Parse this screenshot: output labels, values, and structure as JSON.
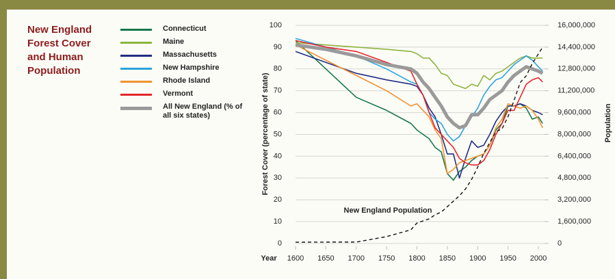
{
  "chart_data": {
    "type": "line",
    "title": "New England Forest Cover and Human Population",
    "x_label": "Year",
    "y_label": "Forest Cover (percentage of state)",
    "y2_label": "Population",
    "x": [
      1600,
      1650,
      1700,
      1750,
      1790,
      1800,
      1810,
      1820,
      1830,
      1840,
      1850,
      1860,
      1870,
      1880,
      1890,
      1900,
      1910,
      1920,
      1930,
      1940,
      1950,
      1960,
      1970,
      1980,
      1990,
      2000,
      2007
    ],
    "xlim": [
      1600,
      2010
    ],
    "xticks": [
      1600,
      1650,
      1700,
      1750,
      1800,
      1850,
      1900,
      1950,
      2000
    ],
    "ylim": [
      0,
      100
    ],
    "yticks": [
      0,
      10,
      20,
      30,
      40,
      50,
      60,
      70,
      80,
      90,
      100
    ],
    "y2lim": [
      0,
      16000000
    ],
    "y2ticks": [
      0,
      {
        "value": 1600000,
        "label": "1,600,000"
      },
      {
        "value": 3200000,
        "label": "3,200,000"
      },
      {
        "value": 4800000,
        "label": "4,800,000"
      },
      {
        "value": 6400000,
        "label": "6,400,000"
      },
      {
        "value": 8000000,
        "label": "8,000,000"
      },
      {
        "value": 9600000,
        "label": "9,600,000"
      },
      {
        "value": 11200000,
        "label": "11,200,000"
      },
      {
        "value": 12800000,
        "label": "12,800,000"
      },
      {
        "value": 14400000,
        "label": "14,400,000"
      },
      {
        "value": 16000000,
        "label": "16,000,000"
      }
    ],
    "grid": true,
    "series": [
      {
        "name": "Connecticut",
        "color": "#17784a",
        "values": [
          93,
          80,
          67,
          61,
          55,
          52,
          50,
          48,
          44,
          42,
          32,
          29,
          33,
          35,
          38,
          40,
          41,
          45,
          52,
          55,
          63,
          63,
          64,
          62,
          57,
          58,
          55
        ]
      },
      {
        "name": "Maine",
        "color": "#8cb43c",
        "values": [
          92,
          91,
          90,
          89,
          88,
          87,
          85,
          85,
          82,
          78,
          77,
          73,
          72,
          71,
          73,
          72,
          77,
          75,
          78,
          79,
          81,
          83,
          85,
          86,
          85,
          85,
          85
        ]
      },
      {
        "name": "Massachusetts",
        "color": "#1f2d86",
        "values": [
          88,
          83,
          78,
          75,
          73,
          72,
          68,
          62,
          58,
          50,
          41,
          41,
          30,
          39,
          47,
          44,
          45,
          50,
          56,
          60,
          63,
          63,
          64,
          63,
          61,
          60,
          59
        ]
      },
      {
        "name": "New Hampshire",
        "color": "#2ba2dc",
        "values": [
          94,
          90,
          86,
          80,
          74,
          73,
          68,
          60,
          57,
          55,
          50,
          47,
          49,
          54,
          58,
          62,
          68,
          72,
          75,
          76,
          79,
          82,
          84,
          86,
          84,
          81,
          79
        ]
      },
      {
        "name": "Rhode Island",
        "color": "#f0922e",
        "values": [
          91,
          84,
          77,
          70,
          63,
          64,
          61,
          58,
          52,
          48,
          32,
          34,
          37,
          38,
          39,
          40,
          41,
          45,
          53,
          57,
          64,
          63,
          62,
          63,
          61,
          57,
          53
        ]
      },
      {
        "name": "Vermont",
        "color": "#e5262b",
        "values": [
          93,
          90,
          88,
          83,
          79,
          73,
          68,
          60,
          53,
          50,
          47,
          44,
          39,
          37,
          36,
          36,
          38,
          43,
          50,
          55,
          61,
          61,
          67,
          73,
          75,
          76,
          74
        ]
      },
      {
        "name": "All New England (% of all six states)",
        "color": "#9a9a9a",
        "values": [
          91,
          89,
          86,
          82,
          80,
          78,
          74,
          71,
          67,
          63,
          58,
          55,
          53,
          54,
          59,
          59,
          62,
          66,
          68,
          70,
          74,
          77,
          79,
          81,
          80,
          79,
          78
        ]
      },
      {
        "name": "New England Population",
        "color": "#111111",
        "style": "dashed",
        "axis": "y2",
        "values": [
          90000,
          100000,
          100000,
          500000,
          1000000,
          1500000,
          1650000,
          1800000,
          2100000,
          2300000,
          2700000,
          3100000,
          3500000,
          4000000,
          4700000,
          5600000,
          6600000,
          7400000,
          8200000,
          8400000,
          9300000,
          10500000,
          11800000,
          12300000,
          13200000,
          13900000,
          14400000
        ]
      }
    ]
  }
}
